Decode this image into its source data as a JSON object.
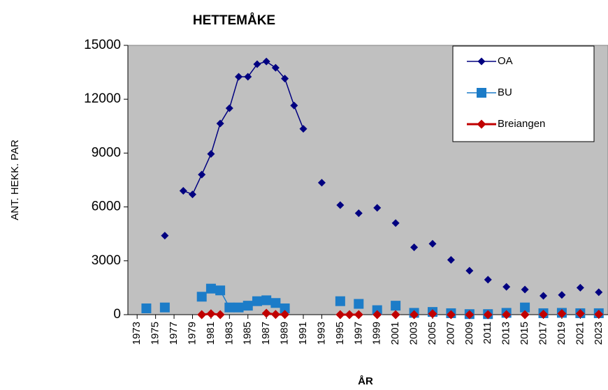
{
  "chart_data": {
    "type": "line",
    "title": "HETTEMÅKE",
    "xlabel": "ÅR",
    "ylabel": "ANT. HEKK. PAR",
    "x": [
      1973,
      1974,
      1975,
      1976,
      1977,
      1978,
      1979,
      1980,
      1981,
      1982,
      1983,
      1984,
      1985,
      1986,
      1987,
      1988,
      1989,
      1990,
      1991,
      1992,
      1993,
      1994,
      1995,
      1996,
      1997,
      1998,
      1999,
      2000,
      2001,
      2002,
      2003,
      2004,
      2005,
      2006,
      2007,
      2008,
      2009,
      2010,
      2011,
      2012,
      2013,
      2014,
      2015,
      2016,
      2017,
      2018,
      2019,
      2020,
      2021,
      2022,
      2023
    ],
    "series": [
      {
        "name": "OA",
        "color": "#000080",
        "marker": "diamond",
        "values": [
          null,
          null,
          null,
          4400,
          null,
          6900,
          6700,
          7800,
          8950,
          10650,
          11500,
          13250,
          13250,
          13950,
          14100,
          13750,
          13150,
          11650,
          10350,
          null,
          7350,
          null,
          6100,
          null,
          5650,
          null,
          5950,
          null,
          5100,
          null,
          3750,
          null,
          3950,
          null,
          3050,
          null,
          2450,
          null,
          1950,
          null,
          1550,
          null,
          1400,
          null,
          1050,
          null,
          1100,
          null,
          1500,
          null,
          1250
        ]
      },
      {
        "name": "BU",
        "color": "#1c7cc8",
        "marker": "square",
        "values": [
          null,
          350,
          null,
          400,
          null,
          null,
          null,
          1000,
          1450,
          1350,
          400,
          400,
          500,
          750,
          800,
          650,
          350,
          null,
          null,
          null,
          null,
          null,
          750,
          null,
          600,
          null,
          250,
          null,
          500,
          null,
          100,
          null,
          150,
          null,
          80,
          null,
          30,
          null,
          30,
          null,
          100,
          null,
          400,
          null,
          80,
          null,
          100,
          null,
          80,
          null,
          80
        ]
      },
      {
        "name": "Breiangen",
        "color": "#c00000",
        "marker": "diamond-small",
        "values": [
          null,
          null,
          null,
          null,
          null,
          null,
          null,
          0,
          50,
          0,
          null,
          null,
          null,
          null,
          80,
          10,
          10,
          null,
          null,
          null,
          null,
          null,
          0,
          0,
          0,
          null,
          0,
          null,
          0,
          null,
          0,
          null,
          50,
          null,
          0,
          null,
          0,
          null,
          0,
          null,
          0,
          null,
          0,
          null,
          20,
          null,
          60,
          null,
          60,
          null,
          20
        ]
      }
    ],
    "xlim": [
      1972,
      2024
    ],
    "xticks": [
      1973,
      1975,
      1977,
      1979,
      1981,
      1983,
      1985,
      1987,
      1989,
      1991,
      1993,
      1995,
      1997,
      1999,
      2001,
      2003,
      2005,
      2007,
      2009,
      2011,
      2013,
      2015,
      2017,
      2019,
      2021,
      2023
    ],
    "ylim": [
      0,
      15000
    ],
    "yticks": [
      0,
      3000,
      6000,
      9000,
      12000,
      15000
    ],
    "grid": false,
    "legend": "upper-right",
    "plot_background": "#c0c0c0"
  }
}
